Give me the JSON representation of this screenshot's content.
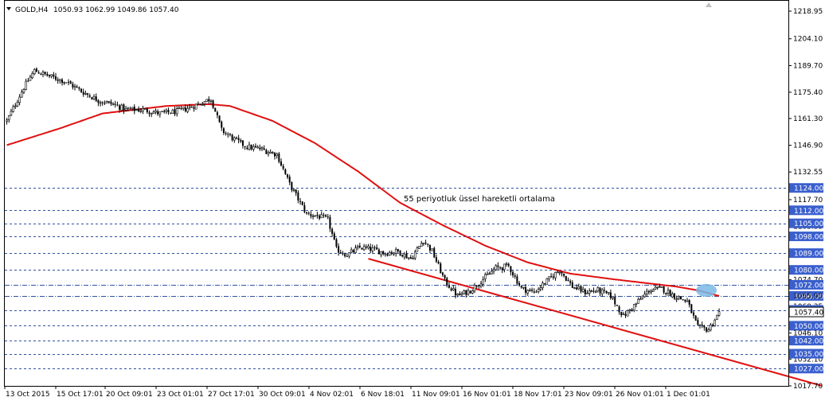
{
  "header": {
    "symbol_label": "GOLD,H4",
    "ohlc_label": "1050.93 1062.99 1049.86 1057.40"
  },
  "annotation_text": "55 periyotluk üssel hareketli ortalama",
  "colors": {
    "background": "#ffffff",
    "candle": "#000000",
    "ema_line": "#e01010",
    "trend_line": "#e01010",
    "level_line": "#3050a0",
    "price_box": "#3a5fcd",
    "price_box_text": "#ffffff",
    "highlight": "#7ab8e6"
  },
  "icons": {
    "menu_arrow": "triangle-down-icon",
    "corner_marker": "triangle-up-icon"
  },
  "chart_data": {
    "type": "candlestick",
    "symbol": "GOLD",
    "timeframe": "H4",
    "ylim": [
      1017.7,
      1224.5
    ],
    "y_ticks": [
      "1218.95",
      "1204.10",
      "1189.70",
      "1175.40",
      "1161.30",
      "1146.90",
      "1132.55",
      "1117.70",
      "1103.35",
      "1089.00",
      "1074.70",
      "1060.35",
      "1046.10",
      "1032.10",
      "1017.70"
    ],
    "x_ticks": [
      "13 Oct 2015",
      "15 Oct 17:01",
      "20 Oct 09:01",
      "23 Oct 01:01",
      "27 Oct 17:01",
      "30 Oct 09:01",
      "4 Nov 02:01",
      "6 Nov 18:01",
      "11 Nov 09:01",
      "16 Nov 01:01",
      "18 Nov 17:01",
      "23 Nov 09:01",
      "26 Nov 01:01",
      "1 Dec 01:01"
    ],
    "levels": [
      {
        "price": 1124.0,
        "label": "1124.00",
        "style": "dashed"
      },
      {
        "price": 1112.0,
        "label": "1112.00",
        "style": "dashed"
      },
      {
        "price": 1105.0,
        "label": "1105.00",
        "style": "dashed"
      },
      {
        "price": 1098.0,
        "label": "1098.00",
        "style": "dashed"
      },
      {
        "price": 1089.0,
        "label": "1089.00",
        "style": "dashed"
      },
      {
        "price": 1080.0,
        "label": "1080.00",
        "style": "dashed"
      },
      {
        "price": 1072.0,
        "label": "1072.00",
        "style": "dashdot"
      },
      {
        "price": 1066.0,
        "label": "1066.00",
        "style": "dashdot"
      },
      {
        "price": 1058.5,
        "label": "1058.50",
        "style": "dashed"
      },
      {
        "price": 1050.0,
        "label": "1050.00",
        "style": "dashed"
      },
      {
        "price": 1042.0,
        "label": "1042.00",
        "style": "dashed"
      },
      {
        "price": 1035.0,
        "label": "1035.00",
        "style": "dashed"
      },
      {
        "price": 1027.0,
        "label": "1027.00",
        "style": "dashed"
      }
    ],
    "current_price": {
      "value": 1057.4,
      "label": "1057.40"
    },
    "ema_label_values": [
      "1065.90"
    ],
    "ema_period": 55,
    "close_path": [
      [
        0,
        1160
      ],
      [
        8,
        1178
      ],
      [
        13,
        1187
      ],
      [
        20,
        1184
      ],
      [
        28,
        1181
      ],
      [
        35,
        1176
      ],
      [
        43,
        1171
      ],
      [
        50,
        1169
      ],
      [
        56,
        1166
      ],
      [
        64,
        1166
      ],
      [
        72,
        1164
      ],
      [
        80,
        1165
      ],
      [
        88,
        1168
      ],
      [
        96,
        1172
      ],
      [
        101,
        1155
      ],
      [
        107,
        1150
      ],
      [
        113,
        1146
      ],
      [
        119,
        1145
      ],
      [
        127,
        1142
      ],
      [
        133,
        1126
      ],
      [
        137,
        1118
      ],
      [
        141,
        1110
      ],
      [
        146,
        1109
      ],
      [
        151,
        1107
      ],
      [
        155,
        1091
      ],
      [
        160,
        1088
      ],
      [
        166,
        1092
      ],
      [
        172,
        1091
      ],
      [
        178,
        1089
      ],
      [
        184,
        1090
      ],
      [
        190,
        1086
      ],
      [
        196,
        1096
      ],
      [
        200,
        1090
      ],
      [
        206,
        1074
      ],
      [
        212,
        1066
      ],
      [
        218,
        1069
      ],
      [
        224,
        1075
      ],
      [
        230,
        1081
      ],
      [
        236,
        1082
      ],
      [
        242,
        1070
      ],
      [
        248,
        1068
      ],
      [
        254,
        1074
      ],
      [
        260,
        1080
      ],
      [
        266,
        1071
      ],
      [
        272,
        1068
      ],
      [
        278,
        1069
      ],
      [
        284,
        1066
      ],
      [
        290,
        1055
      ],
      [
        296,
        1062
      ],
      [
        302,
        1069
      ],
      [
        308,
        1070
      ],
      [
        314,
        1066
      ],
      [
        320,
        1063
      ],
      [
        325,
        1049
      ],
      [
        330,
        1048
      ],
      [
        335,
        1057
      ]
    ],
    "ema_path": [
      [
        0,
        1147
      ],
      [
        25,
        1156
      ],
      [
        45,
        1164
      ],
      [
        75,
        1168
      ],
      [
        95,
        1169
      ],
      [
        105,
        1168
      ],
      [
        125,
        1160
      ],
      [
        145,
        1148
      ],
      [
        165,
        1133
      ],
      [
        185,
        1116
      ],
      [
        205,
        1104
      ],
      [
        225,
        1093
      ],
      [
        245,
        1084
      ],
      [
        265,
        1078
      ],
      [
        285,
        1075
      ],
      [
        300,
        1073
      ],
      [
        315,
        1071
      ],
      [
        325,
        1069
      ],
      [
        335,
        1066
      ]
    ],
    "trend_line": [
      [
        170,
        1086
      ],
      [
        370,
        1022
      ]
    ],
    "highlight_zone": {
      "index": 329,
      "price": 1069
    }
  }
}
